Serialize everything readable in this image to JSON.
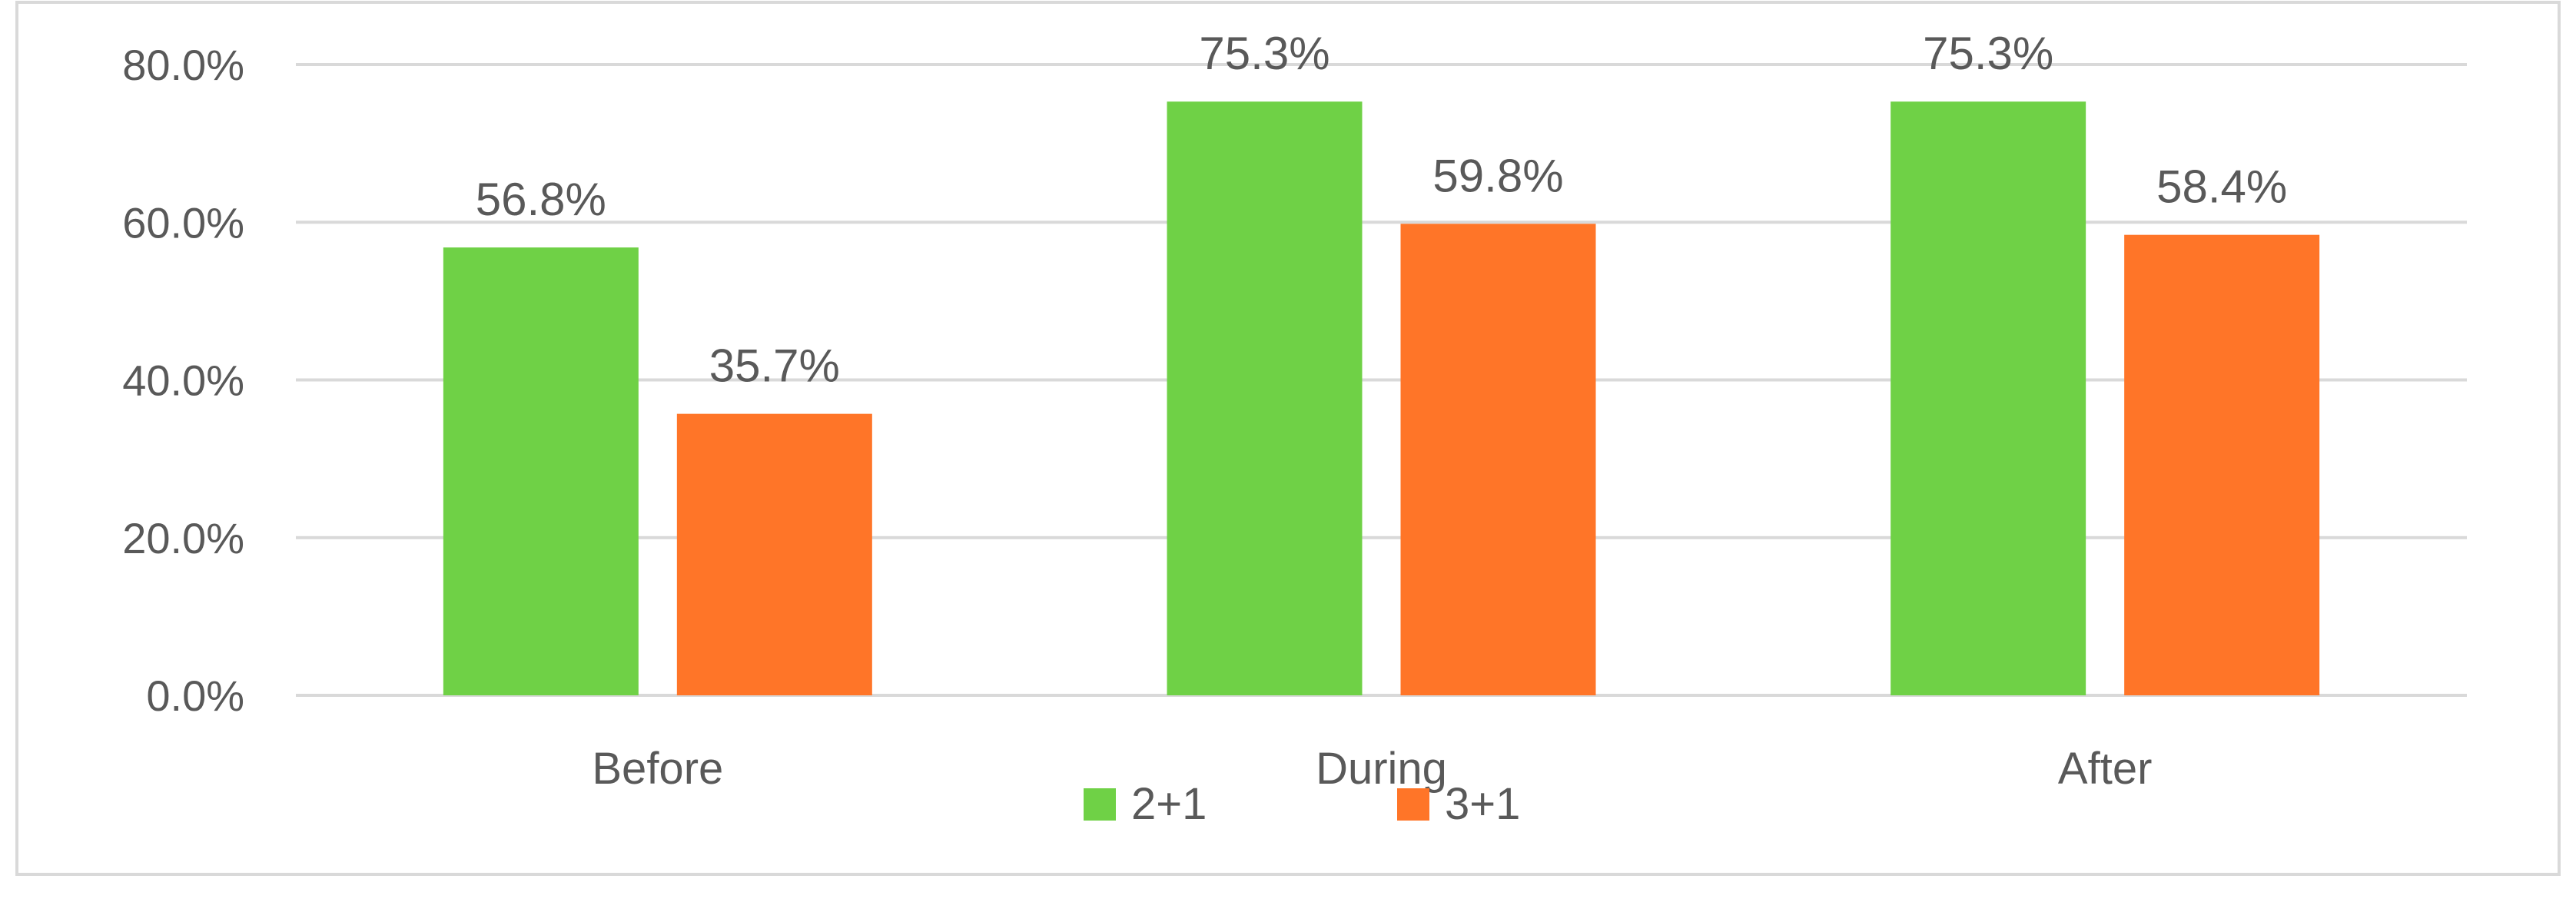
{
  "chart_data": {
    "type": "bar",
    "categories": [
      "Before",
      "During",
      "After"
    ],
    "series": [
      {
        "name": "2+1",
        "values": [
          56.8,
          75.3,
          75.3
        ],
        "color": "#6fd146"
      },
      {
        "name": "3+1",
        "values": [
          35.7,
          59.8,
          58.4
        ],
        "color": "#ff7528"
      }
    ],
    "data_labels": [
      [
        "56.8%",
        "75.3%",
        "75.3%"
      ],
      [
        "35.7%",
        "59.8%",
        "58.4%"
      ]
    ],
    "yticks": [
      "0.0%",
      "20.0%",
      "40.0%",
      "60.0%",
      "80.0%"
    ],
    "ylim": [
      0,
      80
    ],
    "grid": true,
    "legend_position": "bottom",
    "gridline_color": "#d9d9d9",
    "border_color": "#d9d9d9",
    "text_color": "#595959"
  }
}
